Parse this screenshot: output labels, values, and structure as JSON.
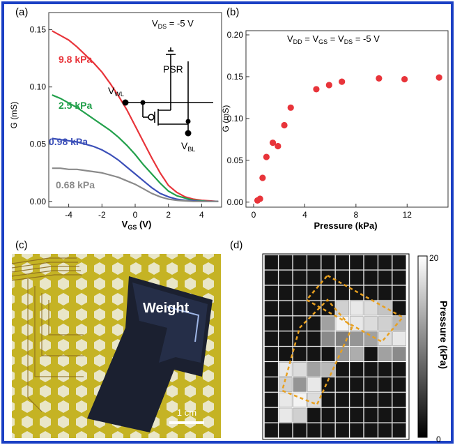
{
  "frame_color": "#1a3fc4",
  "panel_a": {
    "label": "(a)",
    "condition": "V",
    "condition_sub": "DS",
    "condition_val": " = -5 V",
    "chart_data": {
      "type": "line",
      "xlabel": "V",
      "xlabel_sub": "GS",
      "xlabel_unit": " (V)",
      "ylabel": "G (mS)",
      "xlim": [
        -5.2,
        5.2
      ],
      "ylim": [
        -0.005,
        0.165
      ],
      "xticks": [
        -4,
        -2,
        0,
        2,
        4
      ],
      "xtick_labels": [
        "-4",
        "-2",
        "0",
        "2",
        "4"
      ],
      "yticks": [
        0.0,
        0.05,
        0.1,
        0.15
      ],
      "ytick_labels": [
        "0.00",
        "0.05",
        "0.10",
        "0.15"
      ],
      "series": [
        {
          "name": "9.8 kPa",
          "color": "#e8343a",
          "x": [
            -5,
            -4.5,
            -4,
            -3.5,
            -3,
            -2.5,
            -2,
            -1.5,
            -1,
            -0.5,
            0,
            0.5,
            1,
            1.5,
            2,
            2.5,
            3,
            3.5,
            4,
            4.5,
            5
          ],
          "values": [
            0.149,
            0.145,
            0.141,
            0.135,
            0.128,
            0.121,
            0.113,
            0.103,
            0.092,
            0.08,
            0.066,
            0.052,
            0.038,
            0.025,
            0.014,
            0.008,
            0.004,
            0.002,
            0.001,
            0.0005,
            0.0
          ]
        },
        {
          "name": "2.5 kPa",
          "color": "#22a04b",
          "x": [
            -5,
            -4.5,
            -4,
            -3.5,
            -3,
            -2.5,
            -2,
            -1.5,
            -1,
            -0.5,
            0,
            0.5,
            1,
            1.5,
            2,
            2.5,
            3,
            3.5,
            4,
            4.5,
            5
          ],
          "values": [
            0.093,
            0.09,
            0.086,
            0.082,
            0.077,
            0.072,
            0.067,
            0.062,
            0.056,
            0.049,
            0.041,
            0.032,
            0.024,
            0.016,
            0.009,
            0.005,
            0.003,
            0.001,
            0.0005,
            0.0,
            0.0
          ]
        },
        {
          "name": "0.98 kPa",
          "color": "#3b4fb8",
          "x": [
            -5,
            -4.5,
            -4,
            -3.5,
            -3,
            -2.5,
            -2,
            -1.5,
            -1,
            -0.5,
            0,
            0.5,
            1,
            1.5,
            2,
            2.5,
            3,
            3.5,
            4,
            4.5,
            5
          ],
          "values": [
            0.055,
            0.054,
            0.053,
            0.052,
            0.05,
            0.048,
            0.045,
            0.041,
            0.036,
            0.03,
            0.024,
            0.018,
            0.012,
            0.007,
            0.004,
            0.002,
            0.001,
            0.0005,
            0.0,
            0.0,
            0.0
          ]
        },
        {
          "name": "0.68 kPa",
          "color": "#8a8a8a",
          "x": [
            -5,
            -4.5,
            -4,
            -3.5,
            -3,
            -2.5,
            -2,
            -1.5,
            -1,
            -0.5,
            0,
            0.5,
            1,
            1.5,
            2,
            2.5,
            3,
            3.5,
            4,
            4.5,
            5
          ],
          "values": [
            0.029,
            0.029,
            0.028,
            0.028,
            0.027,
            0.026,
            0.025,
            0.023,
            0.021,
            0.018,
            0.015,
            0.011,
            0.007,
            0.004,
            0.002,
            0.001,
            0.0005,
            0.0,
            0.0,
            0.0,
            0.0
          ]
        }
      ]
    },
    "circuit": {
      "wl": "V",
      "wl_sub": "WL",
      "bl": "V",
      "bl_sub": "BL",
      "psr": "PSR"
    }
  },
  "panel_b": {
    "label": "(b)",
    "condition": "V",
    "condition_parts": [
      [
        "DD",
        " = V"
      ],
      [
        "GS",
        " = V"
      ],
      [
        "DS",
        " = -5 V"
      ]
    ],
    "chart_data": {
      "type": "scatter",
      "xlabel": "Pressure (kPa)",
      "ylabel": "G (mS)",
      "xlim": [
        -0.6,
        15.2
      ],
      "ylim": [
        -0.006,
        0.205
      ],
      "xticks": [
        0,
        4,
        8,
        12
      ],
      "xtick_labels": [
        "0",
        "4",
        "8",
        "12"
      ],
      "yticks": [
        0.0,
        0.05,
        0.1,
        0.15,
        0.2
      ],
      "ytick_labels": [
        "0.00",
        "0.05",
        "0.10",
        "0.15",
        "0.20"
      ],
      "color": "#e8343a",
      "x": [
        0.3,
        0.5,
        0.7,
        1.0,
        1.5,
        1.9,
        2.4,
        2.9,
        4.9,
        5.9,
        6.9,
        9.8,
        11.8,
        14.5
      ],
      "values": [
        0.002,
        0.004,
        0.029,
        0.054,
        0.071,
        0.067,
        0.092,
        0.113,
        0.135,
        0.14,
        0.144,
        0.148,
        0.147,
        0.149
      ]
    }
  },
  "panel_c": {
    "label": "(c)",
    "photo_label": "Weight",
    "scale_bar": "1 cm"
  },
  "panel_d": {
    "label": "(d)",
    "colorbar_label": "Pressure (kPa)",
    "colorbar_max": "20",
    "colorbar_min": "0",
    "grid_rows": 12,
    "grid_cols": 10,
    "pressure_levels": [
      [
        0,
        0,
        0,
        0,
        0,
        0,
        0,
        0,
        0,
        0
      ],
      [
        0,
        0,
        0,
        0,
        0,
        0,
        0,
        0,
        0,
        0
      ],
      [
        0,
        0,
        0,
        0,
        0,
        0,
        0,
        0,
        0,
        0
      ],
      [
        0,
        0,
        0,
        0,
        0,
        0.8,
        0.9,
        0.85,
        0.75,
        0
      ],
      [
        0,
        0,
        0,
        0,
        0.6,
        0.95,
        0.9,
        0.85,
        0.8,
        0.7
      ],
      [
        0,
        0,
        0,
        0,
        0.5,
        0.45,
        0.55,
        0.6,
        0.85,
        0.9
      ],
      [
        0,
        0,
        0,
        0,
        0,
        0.55,
        0.65,
        0,
        0.6,
        0.5
      ],
      [
        0,
        0.9,
        0.85,
        0.6,
        0.7,
        0,
        0,
        0,
        0,
        0
      ],
      [
        0,
        0.8,
        0.55,
        0.9,
        0,
        0,
        0,
        0,
        0,
        0
      ],
      [
        0,
        0.9,
        0.95,
        0.85,
        0,
        0,
        0,
        0,
        0,
        0
      ],
      [
        0,
        0.9,
        0.8,
        0,
        0,
        0,
        0,
        0,
        0,
        0
      ],
      [
        0,
        0,
        0,
        0,
        0,
        0,
        0,
        0,
        0,
        0
      ]
    ]
  }
}
